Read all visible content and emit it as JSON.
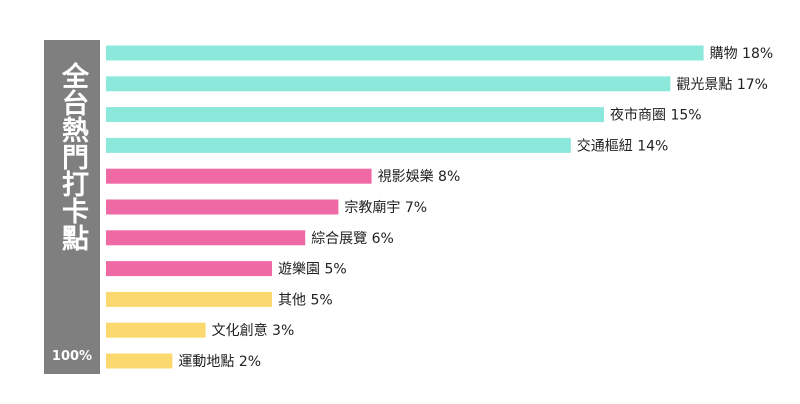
{
  "panel": {
    "title": "全台熱門打卡點",
    "total_label": "100%"
  },
  "colors": {
    "panel": "#7f7f7f",
    "group1": "#8de8dc",
    "group2": "#ef6aa5",
    "group3": "#fcd96f"
  },
  "chart_data": {
    "type": "bar",
    "orientation": "horizontal",
    "title": "全台熱門打卡點",
    "unit": "%",
    "categories": [
      "購物",
      "觀光景點",
      "夜市商圈",
      "交通樞紐",
      "視影娛樂",
      "宗教廟宇",
      "綜合展覽",
      "遊樂園",
      "其他",
      "文化創意",
      "運動地點"
    ],
    "values": [
      18,
      17,
      15,
      14,
      8,
      7,
      6,
      5,
      5,
      3,
      2
    ],
    "groups": [
      1,
      1,
      1,
      1,
      2,
      2,
      2,
      2,
      3,
      3,
      3
    ],
    "labels": [
      "購物 18%",
      "觀光景點 17%",
      "夜市商圈 15%",
      "交通樞紐 14%",
      "視影娛樂 8%",
      "宗教廟宇 7%",
      "綜合展覽 6%",
      "遊樂園 5%",
      "其他 5%",
      "文化創意 3%",
      "運動地點 2%"
    ],
    "grid": false,
    "legend": "none"
  }
}
